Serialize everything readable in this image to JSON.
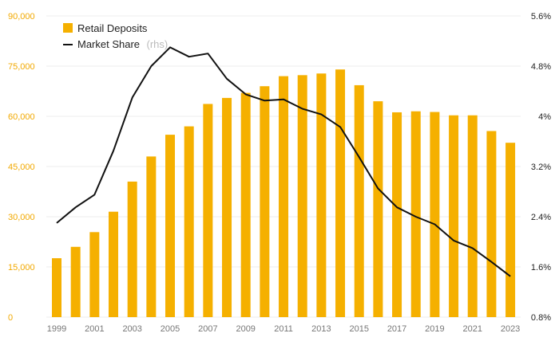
{
  "chart_data": {
    "type": "bar+line",
    "colors": {
      "bars": "#f5b000",
      "line": "#111111",
      "left_axis_text": "#f2a900",
      "right_axis_text": "#222222",
      "grid": "#ececec",
      "x_axis_text": "#777777"
    },
    "years": [
      1999,
      2000,
      2001,
      2002,
      2003,
      2004,
      2005,
      2006,
      2007,
      2008,
      2009,
      2010,
      2011,
      2012,
      2013,
      2014,
      2015,
      2016,
      2017,
      2018,
      2019,
      2020,
      2021,
      2022,
      2023
    ],
    "x_tick_labels": [
      "1999",
      "2001",
      "2003",
      "2005",
      "2007",
      "2009",
      "2011",
      "2013",
      "2015",
      "2017",
      "2019",
      "2021",
      "2023"
    ],
    "left_axis": {
      "ylim": [
        0,
        90000
      ],
      "ticks": [
        "0",
        "15,000",
        "30,000",
        "45,000",
        "60,000",
        "75,000",
        "90,000"
      ]
    },
    "right_axis": {
      "ylim": [
        0.8,
        5.6
      ],
      "ticks": [
        "0.8%",
        "1.6%",
        "2.4%",
        "3.2%",
        "4%",
        "4.8%",
        "5.6%"
      ]
    },
    "series": [
      {
        "name": "Retail Deposits",
        "kind": "bar",
        "axis": "left",
        "values": [
          17600,
          21000,
          25400,
          31500,
          40500,
          48000,
          54500,
          57000,
          63700,
          65500,
          67000,
          69000,
          72000,
          72300,
          72800,
          74000,
          69300,
          64500,
          61200,
          61500,
          61300,
          60300,
          60300,
          55600,
          52100
        ]
      },
      {
        "name": "Market Share",
        "suffix": "(rhs)",
        "kind": "line",
        "axis": "right",
        "values": [
          2.3,
          2.55,
          2.75,
          3.45,
          4.3,
          4.8,
          5.1,
          4.95,
          5.0,
          4.6,
          4.35,
          4.25,
          4.27,
          4.12,
          4.03,
          3.83,
          3.35,
          2.85,
          2.55,
          2.4,
          2.28,
          2.02,
          1.9,
          1.68,
          1.45
        ]
      }
    ],
    "legend_position": "top-left"
  }
}
